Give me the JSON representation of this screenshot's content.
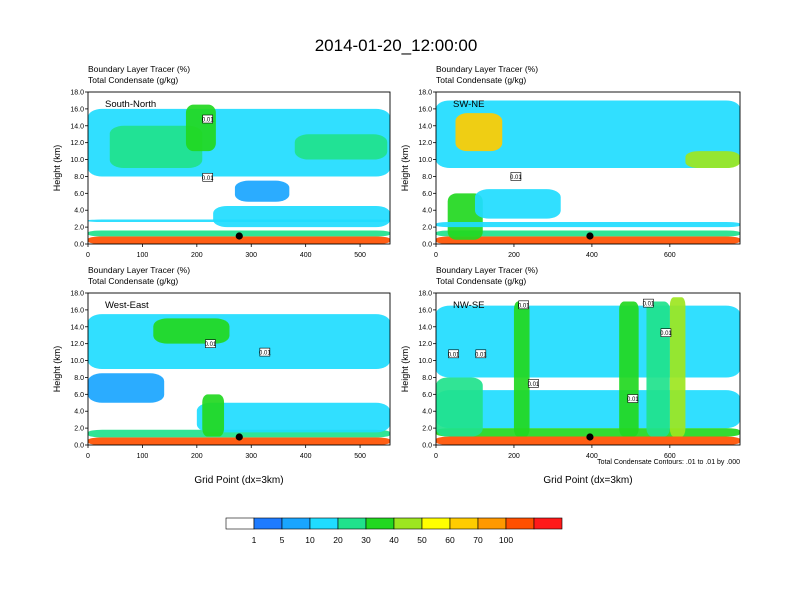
{
  "page": {
    "title": "2014-01-20_12:00:00"
  },
  "colorbar": {
    "colors": [
      "#ffffff",
      "#1e7bff",
      "#19a5ff",
      "#1fdcff",
      "#20e28c",
      "#22d820",
      "#9de620",
      "#ffff00",
      "#ffcc00",
      "#ff9900",
      "#ff5000",
      "#ff1a1a"
    ],
    "labels": [
      "1",
      "5",
      "10",
      "20",
      "30",
      "40",
      "50",
      "60",
      "70",
      "100"
    ]
  },
  "footnote": "Total Condensate Contours: .01 to .01 by .000",
  "chart_data": [
    {
      "type": "heatmap",
      "panel": "South-North",
      "line1": "Boundary Layer Tracer    (%)",
      "line2": "Total Condensate    (g/kg)",
      "ylabel": "Height (km)",
      "xlabel": "",
      "xlim": [
        0,
        555
      ],
      "ylim": [
        0,
        18
      ],
      "xticks": [
        0,
        100,
        200,
        300,
        400,
        500
      ],
      "yticks": [
        0.0,
        2.0,
        4.0,
        6.0,
        8.0,
        10.0,
        12.0,
        14.0,
        16.0,
        18.0
      ],
      "marker_x": 278,
      "contour_labels": [
        {
          "x": 220,
          "y": 14.8,
          "text": "0.01"
        },
        {
          "x": 220,
          "y": 7.9,
          "text": "0.01"
        }
      ],
      "blobs": [
        {
          "x0": 0,
          "x1": 555,
          "y0": 0.0,
          "y1": 0.9,
          "c": 10
        },
        {
          "x0": 0,
          "x1": 555,
          "y0": 0.9,
          "y1": 1.6,
          "c": 4
        },
        {
          "x0": 0,
          "x1": 555,
          "y0": 8.0,
          "y1": 16.0,
          "c": 3
        },
        {
          "x0": 40,
          "x1": 210,
          "y0": 9.0,
          "y1": 14.0,
          "c": 4
        },
        {
          "x0": 180,
          "x1": 235,
          "y0": 11.0,
          "y1": 16.5,
          "c": 5
        },
        {
          "x0": 380,
          "x1": 550,
          "y0": 10.0,
          "y1": 13.0,
          "c": 4
        },
        {
          "x0": 230,
          "x1": 555,
          "y0": 2.0,
          "y1": 4.5,
          "c": 3
        },
        {
          "x0": 0,
          "x1": 555,
          "y0": 2.6,
          "y1": 2.9,
          "c": 3
        },
        {
          "x0": 270,
          "x1": 370,
          "y0": 5.0,
          "y1": 7.5,
          "c": 2
        }
      ]
    },
    {
      "type": "heatmap",
      "panel": "SW-NE",
      "line1": "Boundary Layer Tracer    (%)",
      "line2": "Total Condensate    (g/kg)",
      "ylabel": "Height (km)",
      "xlabel": "",
      "xlim": [
        0,
        780
      ],
      "ylim": [
        0,
        18
      ],
      "xticks": [
        0,
        200,
        400,
        600
      ],
      "yticks": [
        0.0,
        2.0,
        4.0,
        6.0,
        8.0,
        10.0,
        12.0,
        14.0,
        16.0,
        18.0
      ],
      "marker_x": 395,
      "contour_labels": [
        {
          "x": 205,
          "y": 8.0,
          "text": "0.01"
        }
      ],
      "blobs": [
        {
          "x0": 0,
          "x1": 780,
          "y0": 0.0,
          "y1": 0.9,
          "c": 10
        },
        {
          "x0": 0,
          "x1": 780,
          "y0": 0.9,
          "y1": 1.6,
          "c": 4
        },
        {
          "x0": 0,
          "x1": 780,
          "y0": 9.0,
          "y1": 17.0,
          "c": 3
        },
        {
          "x0": 50,
          "x1": 170,
          "y0": 11.0,
          "y1": 15.5,
          "c": 8
        },
        {
          "x0": 30,
          "x1": 120,
          "y0": 0.5,
          "y1": 6.0,
          "c": 5
        },
        {
          "x0": 100,
          "x1": 320,
          "y0": 3.0,
          "y1": 6.5,
          "c": 3
        },
        {
          "x0": 640,
          "x1": 780,
          "y0": 9.0,
          "y1": 11.0,
          "c": 6
        },
        {
          "x0": 0,
          "x1": 780,
          "y0": 2.0,
          "y1": 2.6,
          "c": 3
        }
      ]
    },
    {
      "type": "heatmap",
      "panel": "West-East",
      "line1": "Boundary Layer Tracer    (%)",
      "line2": "Total Condensate    (g/kg)",
      "ylabel": "Height (km)",
      "xlabel": "Grid Point (dx=3km)",
      "xlim": [
        0,
        555
      ],
      "ylim": [
        0,
        18
      ],
      "xticks": [
        0,
        100,
        200,
        300,
        400,
        500
      ],
      "yticks": [
        0.0,
        2.0,
        4.0,
        6.0,
        8.0,
        10.0,
        12.0,
        14.0,
        16.0,
        18.0
      ],
      "marker_x": 278,
      "contour_labels": [
        {
          "x": 225,
          "y": 12.0,
          "text": "0.01"
        },
        {
          "x": 325,
          "y": 11.0,
          "text": "0.01"
        }
      ],
      "blobs": [
        {
          "x0": 0,
          "x1": 555,
          "y0": 0.0,
          "y1": 0.9,
          "c": 10
        },
        {
          "x0": 0,
          "x1": 555,
          "y0": 0.9,
          "y1": 1.8,
          "c": 4
        },
        {
          "x0": 0,
          "x1": 555,
          "y0": 9.0,
          "y1": 15.5,
          "c": 3
        },
        {
          "x0": 120,
          "x1": 260,
          "y0": 12.0,
          "y1": 15.0,
          "c": 5
        },
        {
          "x0": 0,
          "x1": 140,
          "y0": 5.0,
          "y1": 8.5,
          "c": 2
        },
        {
          "x0": 200,
          "x1": 555,
          "y0": 1.5,
          "y1": 5.0,
          "c": 3
        },
        {
          "x0": 210,
          "x1": 250,
          "y0": 1.0,
          "y1": 6.0,
          "c": 5
        }
      ]
    },
    {
      "type": "heatmap",
      "panel": "NW-SE",
      "line1": "Boundary Layer Tracer    (%)",
      "line2": "Total Condensate    (g/kg)",
      "ylabel": "Height (km)",
      "xlabel": "Grid Point (dx=3km)",
      "xlim": [
        0,
        780
      ],
      "ylim": [
        0,
        18
      ],
      "xticks": [
        0,
        200,
        400,
        600
      ],
      "yticks": [
        0.0,
        2.0,
        4.0,
        6.0,
        8.0,
        10.0,
        12.0,
        14.0,
        16.0,
        18.0
      ],
      "marker_x": 395,
      "contour_labels": [
        {
          "x": 45,
          "y": 10.8,
          "text": "0.01"
        },
        {
          "x": 115,
          "y": 10.8,
          "text": "0.01"
        },
        {
          "x": 225,
          "y": 16.6,
          "text": "0.01"
        },
        {
          "x": 250,
          "y": 7.3,
          "text": "0.01"
        },
        {
          "x": 505,
          "y": 5.5,
          "text": "0.01"
        },
        {
          "x": 545,
          "y": 16.8,
          "text": "0.01"
        },
        {
          "x": 590,
          "y": 13.3,
          "text": "0.01"
        }
      ],
      "blobs": [
        {
          "x0": 0,
          "x1": 780,
          "y0": 0.0,
          "y1": 1.0,
          "c": 10
        },
        {
          "x0": 0,
          "x1": 780,
          "y0": 1.0,
          "y1": 2.0,
          "c": 5
        },
        {
          "x0": 0,
          "x1": 780,
          "y0": 8.0,
          "y1": 16.5,
          "c": 3
        },
        {
          "x0": 0,
          "x1": 780,
          "y0": 2.0,
          "y1": 6.5,
          "c": 3
        },
        {
          "x0": 200,
          "x1": 240,
          "y0": 1.0,
          "y1": 17.0,
          "c": 5
        },
        {
          "x0": 470,
          "x1": 520,
          "y0": 1.0,
          "y1": 17.0,
          "c": 5
        },
        {
          "x0": 540,
          "x1": 600,
          "y0": 1.0,
          "y1": 17.0,
          "c": 4
        },
        {
          "x0": 600,
          "x1": 640,
          "y0": 1.0,
          "y1": 17.5,
          "c": 6
        },
        {
          "x0": 0,
          "x1": 120,
          "y0": 1.0,
          "y1": 8.0,
          "c": 4
        }
      ]
    }
  ]
}
